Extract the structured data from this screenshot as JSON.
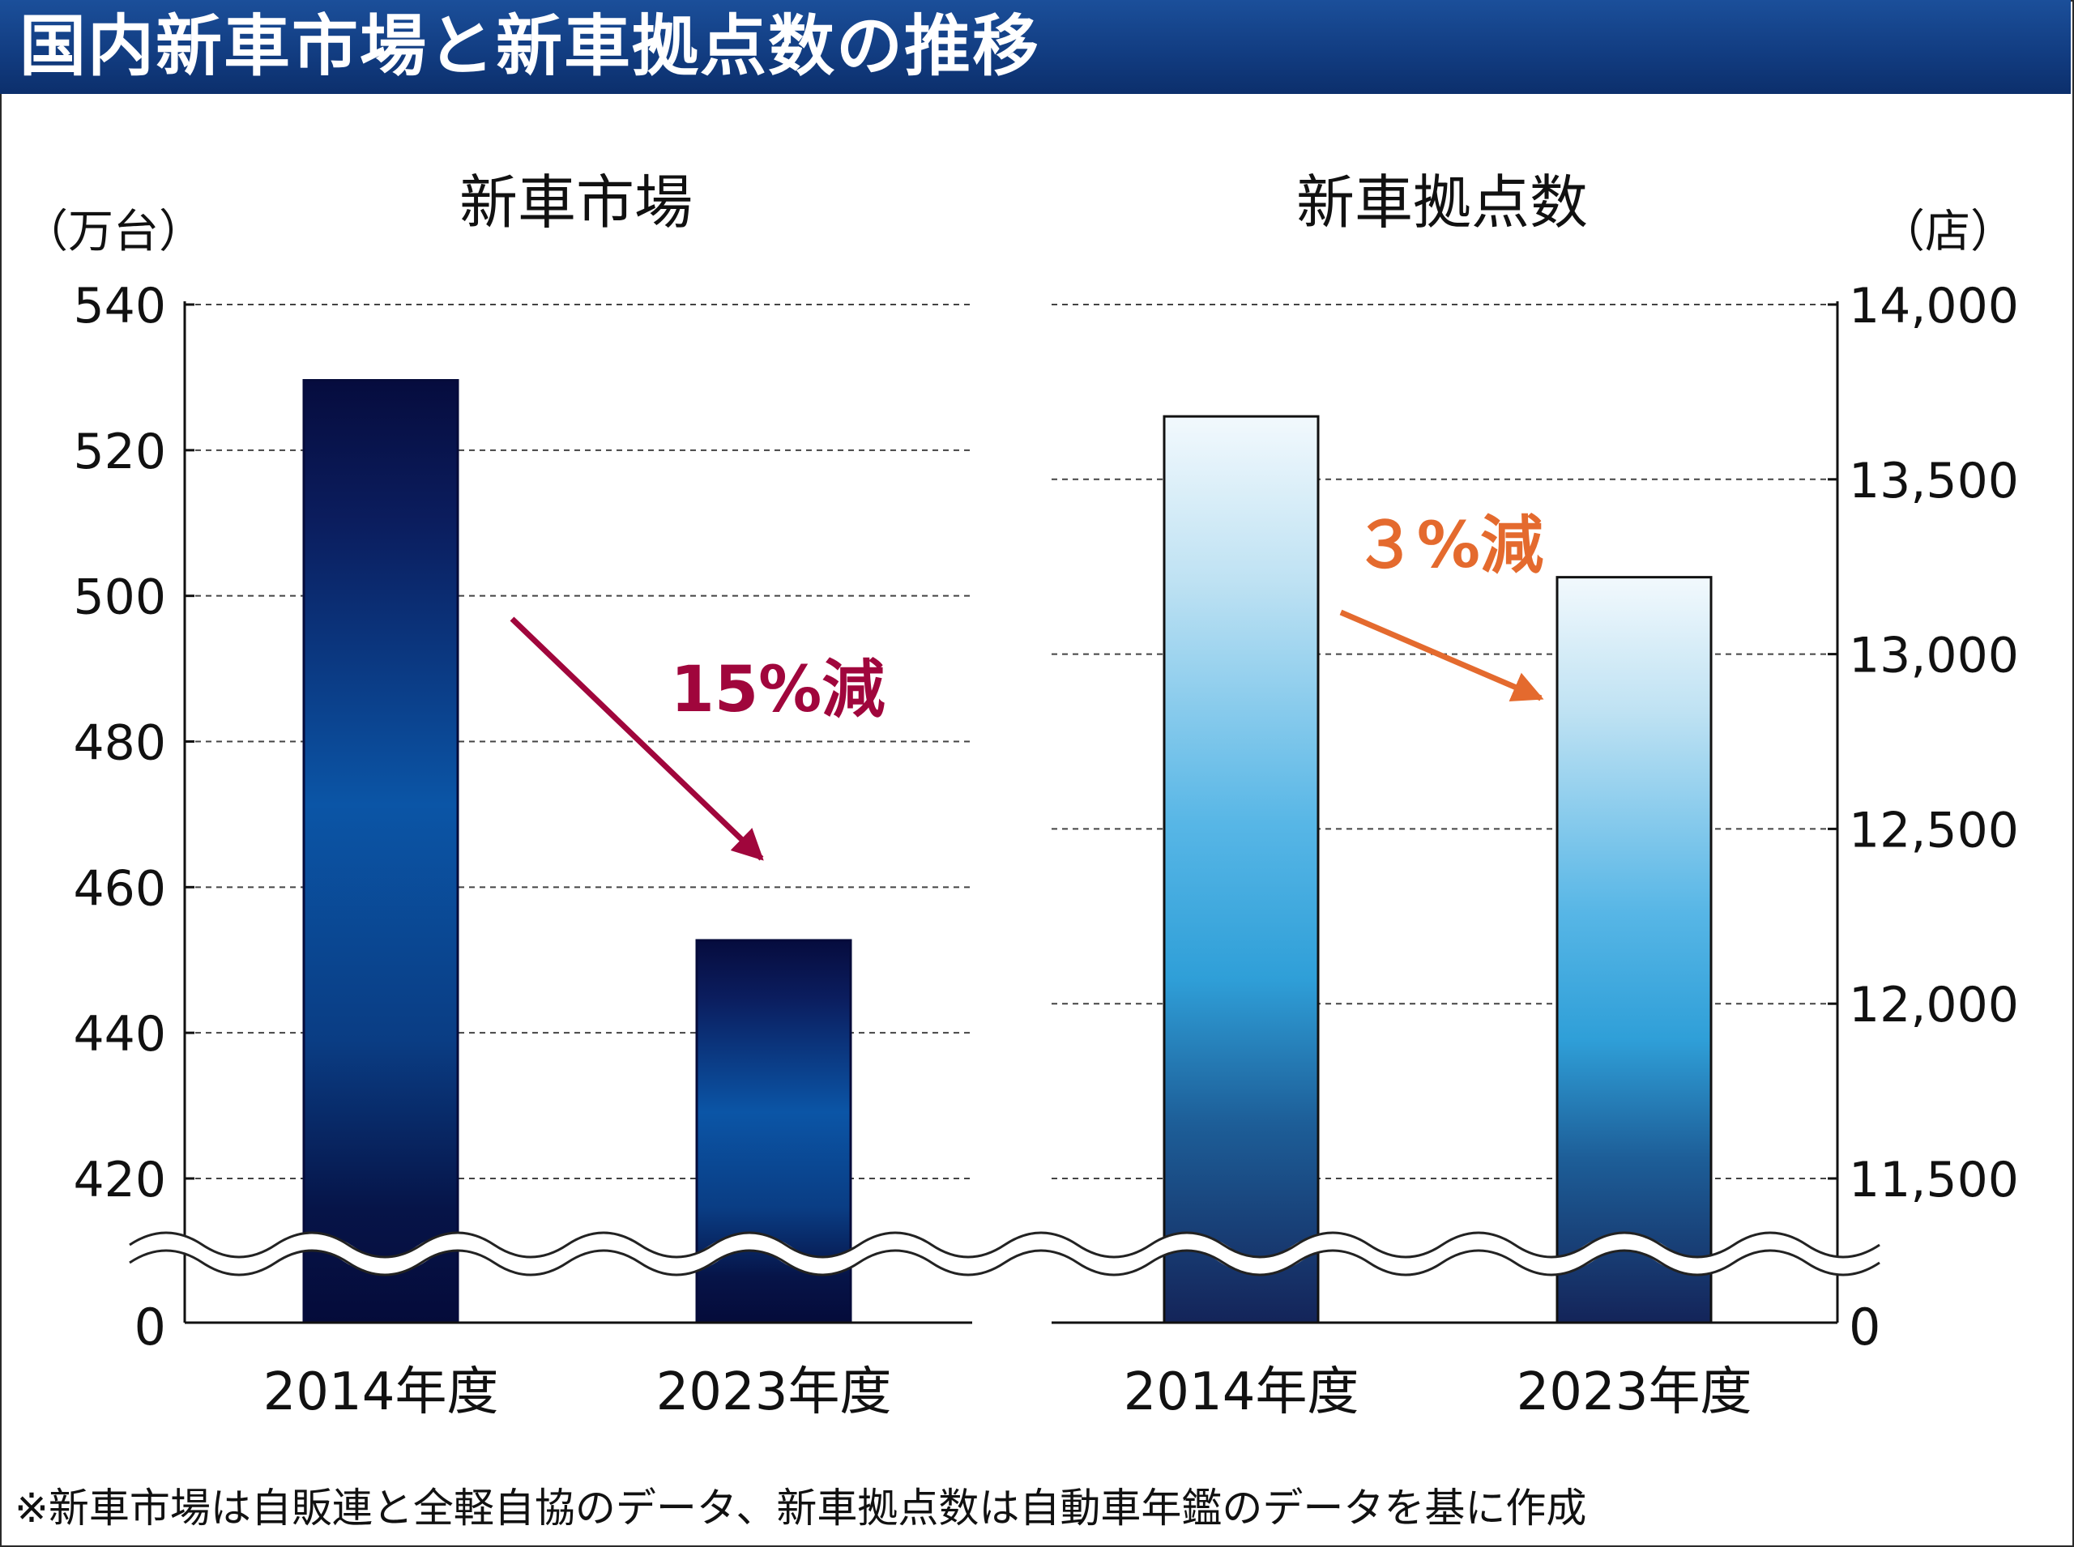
{
  "header": {
    "title": "国内新車市場と新車拠点数の推移"
  },
  "footnote": "※新車市場は自販連と全軽自協のデータ、新車拠点数は自動車年鑑のデータを基に作成",
  "colors": {
    "title_bar": "#123d82",
    "arrow_market": "#a0063c",
    "arrow_dealers": "#e46a2e",
    "market_bar_dark": "#070f42",
    "market_bar_mid": "#0a4f9e",
    "dealer_bar_light": "#eaf6fc",
    "dealer_bar_mid": "#3aa6dc",
    "dealer_bar_dark": "#162a62"
  },
  "chart_data": [
    {
      "type": "bar",
      "title": "新車市場",
      "unit_label": "（万台）",
      "categories": [
        "2014年度",
        "2023年度"
      ],
      "values": [
        529.6,
        452.7
      ],
      "ylim": [
        420,
        540
      ],
      "yticks": [
        "540",
        "520",
        "500",
        "480",
        "460",
        "440",
        "420"
      ],
      "baseline_label": "0",
      "axis_break": true,
      "grid": "dashed",
      "annotation": "15%減"
    },
    {
      "type": "bar",
      "title": "新車拠点数",
      "unit_label": "（店）",
      "categories": [
        "2014年度",
        "2023年度"
      ],
      "values": [
        13680,
        13220
      ],
      "ylim": [
        11500,
        14000
      ],
      "yticks": [
        "14,000",
        "13,500",
        "13,000",
        "12,500",
        "12,000",
        "11,500"
      ],
      "baseline_label": "0",
      "axis_break": true,
      "grid": "dashed",
      "annotation": "３%減"
    }
  ]
}
